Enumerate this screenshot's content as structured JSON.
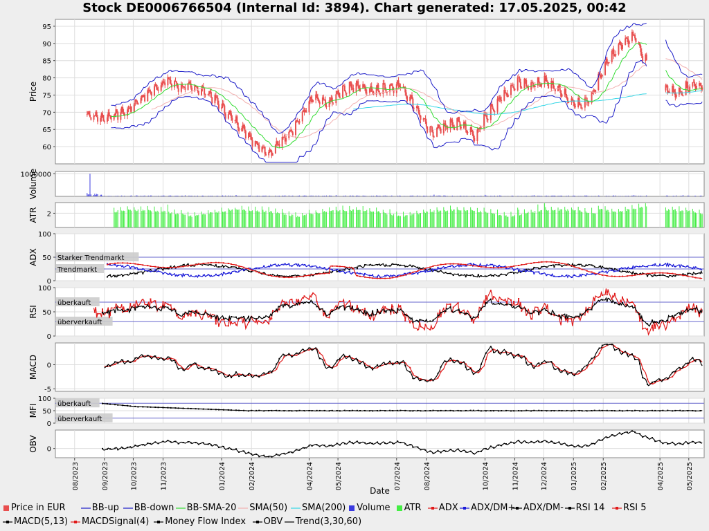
{
  "title": "Stock DE0006766504 (Internal Id: 3894). Chart generated: 17.05.2025, 00:42",
  "colors": {
    "price": "#e84e4e",
    "bb": "#1c1cc8",
    "bb_sma": "#33dd33",
    "sma50": "#f2b0b0",
    "sma200": "#33d6e6",
    "volume": "#3a3ae0",
    "atr": "#44ee44",
    "red": "#e01818",
    "blue": "#1a1ad8",
    "black": "#000000",
    "ref_line": "#6666cc"
  },
  "chart_data": {
    "type": "line",
    "xlabel": "Date",
    "x_ticks": [
      "08/2023",
      "09/2023",
      "10/2023",
      "11/2023",
      "01/2024",
      "02/2024",
      "04/2024",
      "05/2024",
      "07/2024",
      "08/2024",
      "10/2024",
      "11/2024",
      "12/2024",
      "01/2025",
      "02/2025",
      "04/2025",
      "05/2025"
    ],
    "panels": [
      {
        "id": "price",
        "ylabel": "Price",
        "y_ticks": [
          "60",
          "65",
          "70",
          "75",
          "80",
          "85",
          "90",
          "95"
        ],
        "ylim": [
          55,
          97
        ],
        "series": [
          {
            "name": "Price in EUR",
            "type": "candlestick",
            "approx_close": [
              {
                "x": "2023-08-15",
                "y": 69
              },
              {
                "x": "2023-08-30",
                "y": 68
              },
              {
                "x": "2023-09-10",
                "y": 69
              },
              {
                "x": "2023-09-25",
                "y": 70
              },
              {
                "x": "2023-10-05",
                "y": 73
              },
              {
                "x": "2023-10-20",
                "y": 76
              },
              {
                "x": "2023-11-05",
                "y": 79
              },
              {
                "x": "2023-11-20",
                "y": 77
              },
              {
                "x": "2023-12-05",
                "y": 77
              },
              {
                "x": "2023-12-20",
                "y": 75
              },
              {
                "x": "2024-01-05",
                "y": 70
              },
              {
                "x": "2024-01-20",
                "y": 66
              },
              {
                "x": "2024-02-05",
                "y": 61
              },
              {
                "x": "2024-02-20",
                "y": 58
              },
              {
                "x": "2024-03-05",
                "y": 62
              },
              {
                "x": "2024-03-20",
                "y": 67
              },
              {
                "x": "2024-04-05",
                "y": 74
              },
              {
                "x": "2024-04-20",
                "y": 72
              },
              {
                "x": "2024-05-05",
                "y": 76
              },
              {
                "x": "2024-05-20",
                "y": 78
              },
              {
                "x": "2024-06-05",
                "y": 76
              },
              {
                "x": "2024-06-20",
                "y": 77
              },
              {
                "x": "2024-07-05",
                "y": 78
              },
              {
                "x": "2024-07-20",
                "y": 72
              },
              {
                "x": "2024-08-05",
                "y": 64
              },
              {
                "x": "2024-08-20",
                "y": 66
              },
              {
                "x": "2024-09-05",
                "y": 67
              },
              {
                "x": "2024-09-20",
                "y": 63
              },
              {
                "x": "2024-10-05",
                "y": 70
              },
              {
                "x": "2024-10-20",
                "y": 75
              },
              {
                "x": "2024-11-05",
                "y": 79
              },
              {
                "x": "2024-11-20",
                "y": 78
              },
              {
                "x": "2024-12-05",
                "y": 79
              },
              {
                "x": "2024-12-20",
                "y": 76
              },
              {
                "x": "2025-01-05",
                "y": 72
              },
              {
                "x": "2025-01-20",
                "y": 75
              },
              {
                "x": "2025-02-05",
                "y": 85
              },
              {
                "x": "2025-02-20",
                "y": 90
              },
              {
                "x": "2025-03-05",
                "y": 93
              },
              {
                "x": "2025-03-15",
                "y": 86
              },
              {
                "x": "2025-04-05",
                "y": 77
              },
              {
                "x": "2025-04-20",
                "y": 76
              },
              {
                "x": "2025-05-05",
                "y": 78
              }
            ]
          },
          {
            "name": "BB-up"
          },
          {
            "name": "BB-down"
          },
          {
            "name": "BB-SMA-20"
          },
          {
            "name": "SMA(50)"
          },
          {
            "name": "SMA(200)"
          }
        ]
      },
      {
        "id": "volume",
        "ylabel": "Volume",
        "y_ticks": [
          "1000000"
        ],
        "ylim": [
          0,
          1100000
        ],
        "series": [
          {
            "name": "Volume",
            "type": "bar",
            "peak": {
              "x": "2023-08-18",
              "y": 1000000
            }
          }
        ]
      },
      {
        "id": "atr",
        "ylabel": "ATR",
        "y_ticks": [
          "2"
        ],
        "ylim": [
          0,
          3.5
        ],
        "series": [
          {
            "name": "ATR",
            "type": "bar"
          }
        ]
      },
      {
        "id": "adx",
        "ylabel": "ADX",
        "y_ticks": [
          "0",
          "50",
          "100"
        ],
        "ylim": [
          0,
          100
        ],
        "annotations": [
          {
            "label": "Starker Trendmarkt",
            "y": 50
          },
          {
            "label": "Trendmarkt",
            "y": 25
          }
        ],
        "series": [
          {
            "name": "ADX"
          },
          {
            "name": "ADX/DM+"
          },
          {
            "name": "ADX/DM-"
          }
        ]
      },
      {
        "id": "rsi",
        "ylabel": "RSI",
        "y_ticks": [
          "0",
          "50",
          "100"
        ],
        "ylim": [
          0,
          100
        ],
        "annotations": [
          {
            "label": "überkauft",
            "y": 70
          },
          {
            "label": "überverkauft",
            "y": 30
          }
        ],
        "series": [
          {
            "name": "RSI 14"
          },
          {
            "name": "RSI 5"
          }
        ]
      },
      {
        "id": "macd",
        "ylabel": "MACD",
        "y_ticks": [
          "-5",
          "0"
        ],
        "ylim": [
          -5.5,
          4.5
        ],
        "series": [
          {
            "name": "MACD(5,13)"
          },
          {
            "name": "MACDSignal(4)"
          }
        ]
      },
      {
        "id": "mfi",
        "ylabel": "MFI",
        "y_ticks": [
          "0",
          "50",
          "100"
        ],
        "ylim": [
          0,
          100
        ],
        "annotations": [
          {
            "label": "überkauft",
            "y": 80
          },
          {
            "label": "überverkauft",
            "y": 20
          }
        ],
        "series": [
          {
            "name": "Money Flow Index"
          }
        ]
      },
      {
        "id": "obv",
        "ylabel": "OBV",
        "y_ticks": [
          "0"
        ],
        "ylim": [
          -1,
          2
        ],
        "series": [
          {
            "name": "OBV"
          },
          {
            "name": "Trend(3,30,60)"
          }
        ]
      }
    ],
    "legend": [
      "Price in EUR",
      "BB-up",
      "BB-down",
      "BB-SMA-20",
      "SMA(50)",
      "SMA(200)",
      "Volume",
      "ATR",
      "ADX",
      "ADX/DM+",
      "ADX/DM-",
      "RSI 14",
      "RSI 5",
      "MACD(5,13)",
      "MACDSignal(4)",
      "Money Flow Index",
      "OBV",
      "Trend(3,30,60)"
    ],
    "legend_placement": "bottom",
    "grid": true
  }
}
